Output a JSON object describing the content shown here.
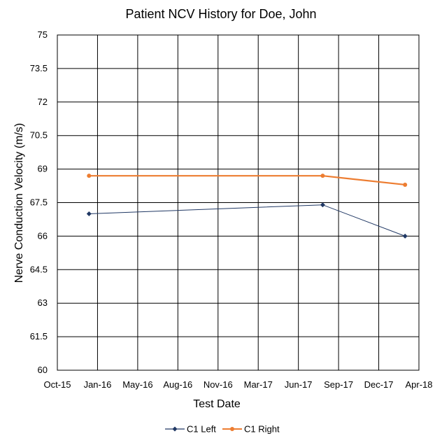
{
  "chart_data": {
    "type": "line",
    "title": "Patient NCV History for Doe, John",
    "xlabel": "Test Date",
    "ylabel": "Nerve Conduction Velocity (m/s)",
    "xlim": [
      "2015-10-01",
      "2018-04-01"
    ],
    "ylim": [
      60,
      75
    ],
    "x_ticks": [
      "Oct-15",
      "Jan-16",
      "May-16",
      "Aug-16",
      "Nov-16",
      "Mar-17",
      "Jun-17",
      "Sep-17",
      "Dec-17",
      "Apr-18"
    ],
    "y_ticks": [
      "60",
      "61.5",
      "63",
      "64.5",
      "66",
      "67.5",
      "69",
      "70.5",
      "72",
      "73.5",
      "75"
    ],
    "grid": true,
    "legend_position": "bottom",
    "series": [
      {
        "name": "C1 Left",
        "color": "#203864",
        "marker": "diamond",
        "x": [
          "2015-12-20",
          "2017-08-01",
          "2018-02-25"
        ],
        "y": [
          67.0,
          67.4,
          66.0
        ]
      },
      {
        "name": "C1 Right",
        "color": "#ED7D31",
        "marker": "circle",
        "x": [
          "2015-12-20",
          "2017-08-01",
          "2018-02-25"
        ],
        "y": [
          68.7,
          68.7,
          68.3
        ]
      }
    ]
  }
}
